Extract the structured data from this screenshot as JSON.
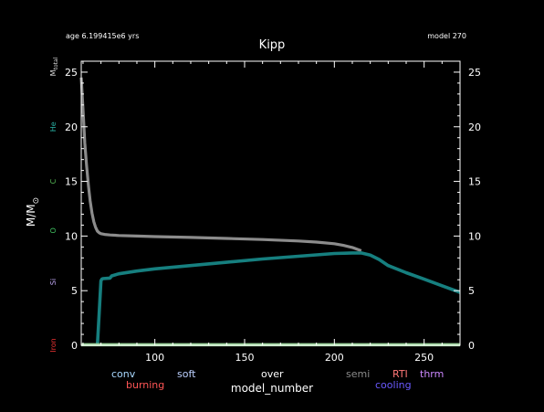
{
  "header": {
    "age_text": "age 6.199415e6 yrs",
    "model_text": "model 270"
  },
  "colors": {
    "background": "#000000",
    "frame": "#ffffff",
    "total_mass": "#8c8c8c",
    "he_core": "#167f7f",
    "baseline": "#9bd39b"
  },
  "element_labels": [
    {
      "text": "M",
      "sub": "total",
      "color": "#dddddd",
      "y": 25.5
    },
    {
      "text": "He",
      "color": "#29b3a6",
      "y": 20
    },
    {
      "text": "C",
      "color": "#55bb55",
      "y": 15
    },
    {
      "text": "O",
      "color": "#3fbf5f",
      "y": 10.5
    },
    {
      "text": "Si",
      "color": "#bba3ee",
      "y": 5.8
    },
    {
      "text": "Iron",
      "color": "#ee3333",
      "y": 0
    }
  ],
  "legend": [
    {
      "text": "conv",
      "color": "#a8d8ff",
      "row": 0
    },
    {
      "text": "burning",
      "color": "#ff5555",
      "row": 1
    },
    {
      "text": "soft",
      "color": "#bcd0ff",
      "row": 0
    },
    {
      "text": "over",
      "color": "#ffffff",
      "row": 0
    },
    {
      "text": "semi",
      "color": "#8c8c8c",
      "row": 0
    },
    {
      "text": "RTI",
      "color": "#ff7777",
      "row": 0
    },
    {
      "text": "cooling",
      "color": "#6a5aff",
      "row": 1
    },
    {
      "text": "thrm",
      "color": "#cc88ff",
      "row": 0
    }
  ],
  "chart_data": {
    "type": "line",
    "title": "Kipp",
    "xlabel": "model_number",
    "ylabel": "M/M",
    "ylabel_symbol": "⊙",
    "xlim": [
      59,
      270
    ],
    "ylim": [
      0,
      26
    ],
    "xticks": [
      100,
      150,
      200,
      250
    ],
    "yticks": [
      0,
      5,
      10,
      15,
      20,
      25
    ],
    "series": [
      {
        "key": "total_mass",
        "x": [
          59,
          60,
          61,
          62,
          63,
          64,
          65,
          66,
          67,
          68,
          69,
          70,
          72,
          75,
          80,
          90,
          100,
          120,
          140,
          160,
          180,
          190,
          200,
          205,
          210,
          215
        ],
        "y": [
          24.5,
          21.5,
          18.5,
          16.4,
          14.6,
          13.2,
          12.1,
          11.3,
          10.8,
          10.45,
          10.3,
          10.22,
          10.15,
          10.1,
          10.05,
          10.0,
          9.95,
          9.87,
          9.78,
          9.68,
          9.55,
          9.45,
          9.3,
          9.15,
          8.95,
          8.65
        ]
      },
      {
        "key": "he_core",
        "x": [
          68,
          69,
          70,
          70.5,
          71,
          75,
          76,
          80,
          90,
          100,
          120,
          140,
          160,
          180,
          200,
          210,
          215,
          220,
          225,
          230,
          240,
          250,
          260,
          265,
          270
        ],
        "y": [
          0,
          3.0,
          5.9,
          6.05,
          6.1,
          6.15,
          6.35,
          6.55,
          6.8,
          7.0,
          7.3,
          7.6,
          7.9,
          8.15,
          8.4,
          8.45,
          8.45,
          8.25,
          7.85,
          7.3,
          6.65,
          6.05,
          5.45,
          5.15,
          4.85
        ]
      },
      {
        "key": "baseline",
        "x": [
          59,
          270
        ],
        "y": [
          0.05,
          0.05
        ]
      }
    ]
  }
}
